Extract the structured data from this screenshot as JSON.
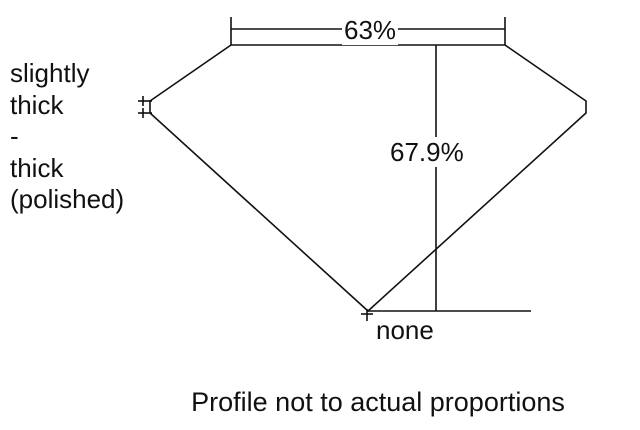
{
  "diagram": {
    "girdle_label_lines": [
      "slightly",
      "thick",
      "-",
      "thick",
      "(polished)"
    ],
    "table_percent": "63%",
    "depth_percent": "67.9%",
    "culet_label": "none",
    "caption": "Profile not to actual proportions",
    "line_color": "#111111"
  }
}
